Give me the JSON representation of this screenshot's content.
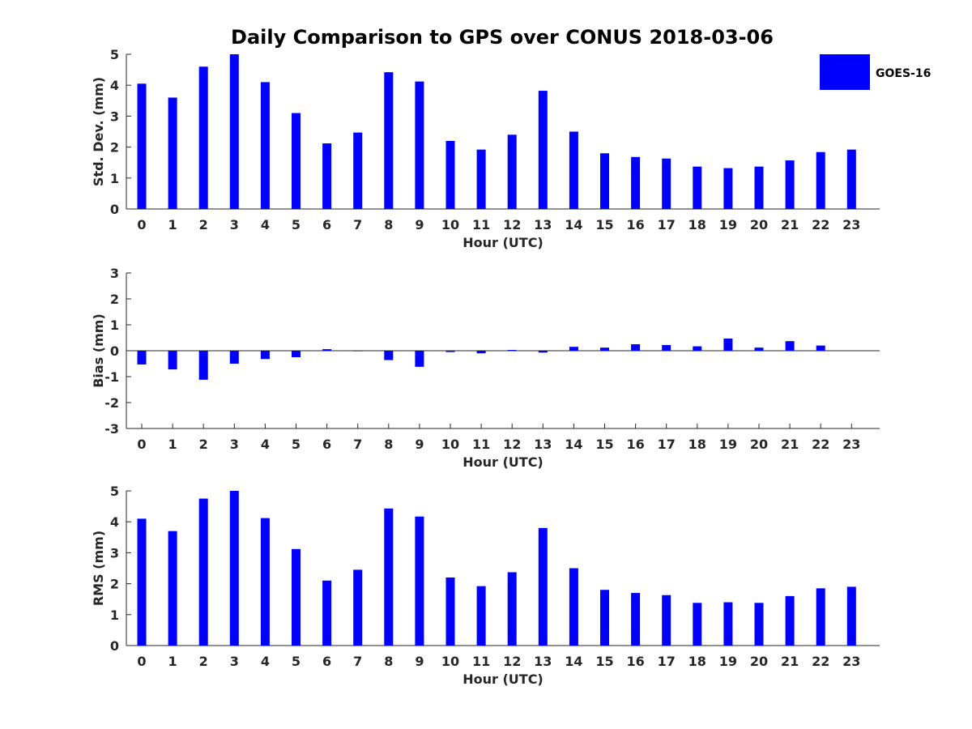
{
  "title": "Daily Comparison to GPS over CONUS 2018-03-06",
  "colors": {
    "bar": "#0000ff",
    "axis": "#262626",
    "text": "#262626"
  },
  "legend": {
    "label": "GOES-16",
    "placement": "top-right"
  },
  "chart_data": [
    {
      "type": "bar",
      "name": "std-dev",
      "xlabel": "Hour (UTC)",
      "ylabel": "Std. Dev. (mm)",
      "categories": [
        "0",
        "1",
        "2",
        "3",
        "4",
        "5",
        "6",
        "7",
        "8",
        "9",
        "10",
        "11",
        "12",
        "13",
        "14",
        "15",
        "16",
        "17",
        "18",
        "19",
        "20",
        "21",
        "22",
        "23"
      ],
      "yticks": [
        "0",
        "1",
        "2",
        "3",
        "4",
        "5"
      ],
      "ylim": [
        0,
        5
      ],
      "series": [
        {
          "name": "GOES-16",
          "values": [
            4.05,
            3.6,
            4.6,
            5.0,
            4.1,
            3.1,
            2.12,
            2.47,
            4.42,
            4.12,
            2.2,
            1.92,
            2.4,
            3.82,
            2.5,
            1.8,
            1.68,
            1.63,
            1.37,
            1.32,
            1.37,
            1.57,
            1.84,
            1.92
          ]
        }
      ]
    },
    {
      "type": "bar",
      "name": "bias",
      "xlabel": "Hour (UTC)",
      "ylabel": "Bias (mm)",
      "categories": [
        "0",
        "1",
        "2",
        "3",
        "4",
        "5",
        "6",
        "7",
        "8",
        "9",
        "10",
        "11",
        "12",
        "13",
        "14",
        "15",
        "16",
        "17",
        "18",
        "19",
        "20",
        "21",
        "22",
        "23"
      ],
      "yticks": [
        "-3",
        "-2",
        "-1",
        "0",
        "1",
        "2",
        "3"
      ],
      "ylim": [
        -3,
        3
      ],
      "series": [
        {
          "name": "GOES-16",
          "values": [
            -0.53,
            -0.72,
            -1.12,
            -0.5,
            -0.32,
            -0.25,
            0.06,
            -0.02,
            -0.36,
            -0.62,
            -0.05,
            -0.1,
            0.03,
            -0.07,
            0.15,
            0.12,
            0.25,
            0.22,
            0.17,
            0.47,
            0.12,
            0.37,
            0.2,
            0.0
          ]
        }
      ]
    },
    {
      "type": "bar",
      "name": "rms",
      "xlabel": "Hour (UTC)",
      "ylabel": "RMS (mm)",
      "categories": [
        "0",
        "1",
        "2",
        "3",
        "4",
        "5",
        "6",
        "7",
        "8",
        "9",
        "10",
        "11",
        "12",
        "13",
        "14",
        "15",
        "16",
        "17",
        "18",
        "19",
        "20",
        "21",
        "22",
        "23"
      ],
      "yticks": [
        "0",
        "1",
        "2",
        "3",
        "4",
        "5"
      ],
      "ylim": [
        0,
        5
      ],
      "series": [
        {
          "name": "GOES-16",
          "values": [
            4.1,
            3.7,
            4.75,
            5.0,
            4.12,
            3.12,
            2.1,
            2.45,
            4.43,
            4.17,
            2.2,
            1.92,
            2.37,
            3.8,
            2.5,
            1.8,
            1.7,
            1.63,
            1.38,
            1.4,
            1.38,
            1.6,
            1.85,
            1.9
          ]
        }
      ]
    }
  ]
}
